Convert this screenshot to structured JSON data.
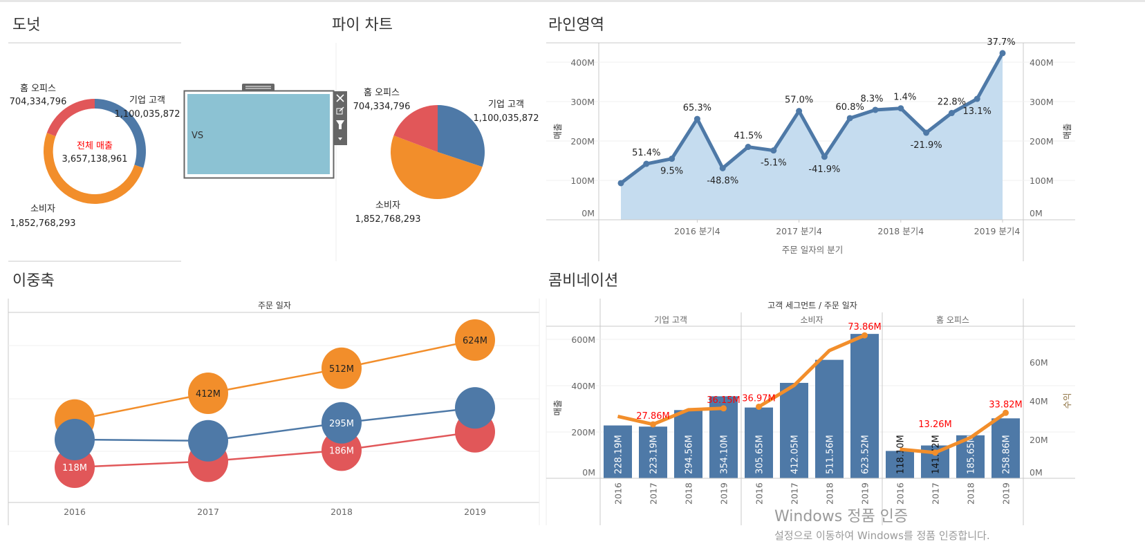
{
  "colors": {
    "corporate": "#4e79a7",
    "consumer": "#f28e2b",
    "home_office": "#e15759",
    "area_fill": "#c5dcef",
    "highlight_label": "#ff0000",
    "widget_fill": "#8cc2d3"
  },
  "donut": {
    "title": "도넛",
    "center_label": "전체 매출",
    "center_value": "3,657,138,961",
    "segments": [
      {
        "name": "기업 고객",
        "value": 1100035872,
        "value_label": "1,100,035,872",
        "color": "#4e79a7"
      },
      {
        "name": "소비자",
        "value": 1852768293,
        "value_label": "1,852,768,293",
        "color": "#f28e2b"
      },
      {
        "name": "홈 오피스",
        "value": 704334796,
        "value_label": "704,334,796",
        "color": "#e15759"
      }
    ]
  },
  "pie": {
    "title": "파이 차트",
    "segments": [
      {
        "name": "기업 고객",
        "value": 1100035872,
        "value_label": "1,100,035,872",
        "color": "#4e79a7"
      },
      {
        "name": "소비자",
        "value": 1852768293,
        "value_label": "1,852,768,293",
        "color": "#f28e2b"
      },
      {
        "name": "홈 오피스",
        "value": 704334796,
        "value_label": "704,334,796",
        "color": "#e15759"
      }
    ]
  },
  "floating_widget": {
    "text": "VS",
    "toolbar_icons": [
      "close-icon",
      "open-external-icon",
      "filter-icon",
      "dropdown-arrow-icon"
    ]
  },
  "chart_data": [
    {
      "id": "line_area",
      "type": "area",
      "title": "라인영역",
      "xlabel": "주문 일자의 분기",
      "ylabel": "매출",
      "ylabel_right": "매출",
      "ylim": [
        0,
        400
      ],
      "y_ticks": [
        "0M",
        "100M",
        "200M",
        "300M",
        "400M"
      ],
      "x_ticks": [
        "2016 분기4",
        "2017 분기4",
        "2018 분기4",
        "2019 분기4"
      ],
      "x": [
        "2016 Q1",
        "2016 Q2",
        "2016 Q3",
        "2016 Q4",
        "2017 Q1",
        "2017 Q2",
        "2017 Q3",
        "2017 Q4",
        "2018 Q1",
        "2018 Q2",
        "2018 Q3",
        "2018 Q4",
        "2019 Q1",
        "2019 Q2",
        "2019 Q3",
        "2019 Q4"
      ],
      "values": [
        93,
        142,
        155,
        256,
        131,
        185,
        176,
        276,
        160,
        258,
        279,
        283,
        221,
        271,
        307,
        423
      ],
      "unit": "M",
      "pct_labels": [
        "",
        "51.4%",
        "9.5%",
        "65.3%",
        "-48.8%",
        "41.5%",
        "-5.1%",
        "57.0%",
        "-41.9%",
        "60.8%",
        "8.3%",
        "1.4%",
        "-21.9%",
        "22.8%",
        "13.1%",
        "37.7%"
      ],
      "grid": true
    },
    {
      "id": "dual_axis",
      "type": "line",
      "title": "이중축",
      "header": "주문 일자",
      "categories": [
        "2016",
        "2017",
        "2018",
        "2019"
      ],
      "series": [
        {
          "color": "#f28e2b",
          "values": [
            305.65,
            412.05,
            511.56,
            623.52
          ],
          "labels": [
            "",
            "412M",
            "512M",
            "624M"
          ]
        },
        {
          "color": "#e15759",
          "values": [
            118.1,
            141.72,
            185.65,
            258.86
          ],
          "labels": [
            "118M",
            "",
            "186M",
            ""
          ]
        },
        {
          "color": "#4e79a7",
          "values": [
            228.19,
            223.19,
            294.56,
            354.1
          ],
          "labels": [
            "",
            "",
            "295M",
            ""
          ]
        }
      ],
      "grid": true
    },
    {
      "id": "combination",
      "type": "bar",
      "title": "콤비네이션",
      "header": "고객 세그먼트 / 주문 일자",
      "ylabel": "매출",
      "ylabel_right": "수익",
      "ylim": [
        0,
        600
      ],
      "ylim_right": [
        0,
        70
      ],
      "y_ticks": [
        "0M",
        "200M",
        "400M",
        "600M"
      ],
      "y_ticks_right": [
        "0M",
        "20M",
        "40M",
        "60M"
      ],
      "panes": [
        {
          "name": "기업 고객",
          "categories": [
            "2016",
            "2017",
            "2018",
            "2019"
          ],
          "bars": [
            228.19,
            223.19,
            294.56,
            354.1
          ],
          "bar_labels": [
            "228.19M",
            "223.19M",
            "294.56M",
            "354.10M"
          ],
          "line": [
            32.0,
            27.86,
            35.4,
            36.15
          ],
          "line_labels": [
            "",
            "27.86M",
            "",
            "36.15M"
          ]
        },
        {
          "name": "소비자",
          "categories": [
            "2016",
            "2017",
            "2018",
            "2019"
          ],
          "bars": [
            305.65,
            412.05,
            511.56,
            623.52
          ],
          "bar_labels": [
            "305.65M",
            "412.05M",
            "511.56M",
            "623.52M"
          ],
          "line": [
            36.97,
            48.0,
            66.0,
            73.86
          ],
          "line_labels": [
            "36.97M",
            "",
            "",
            "73.86M"
          ]
        },
        {
          "name": "홈 오피스",
          "categories": [
            "2016",
            "2017",
            "2018",
            "2019"
          ],
          "bars": [
            118.1,
            141.72,
            185.65,
            258.86
          ],
          "bar_labels": [
            "118.10M",
            "141.72M",
            "185.65M",
            "258.86M"
          ],
          "line": [
            15.0,
            13.26,
            21.0,
            33.82
          ],
          "line_labels": [
            "",
            "13.26M",
            "",
            "33.82M"
          ]
        }
      ],
      "grid": true
    }
  ],
  "watermark": {
    "line1": "Windows 정품 인증",
    "line2": "설정으로 이동하여 Windows를 정품 인증합니다."
  }
}
